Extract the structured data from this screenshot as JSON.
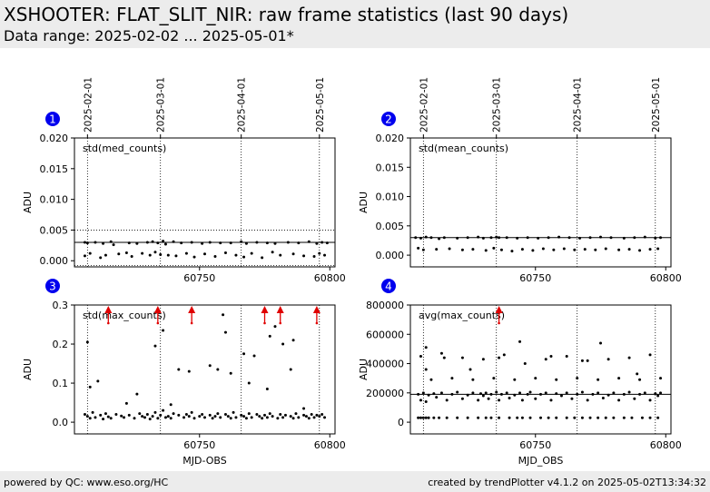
{
  "header": {
    "title": "XSHOOTER: FLAT_SLIT_NIR: raw frame statistics (last 90 days)",
    "subtitle": "Data range: 2025-02-02 ... 2025-05-01*"
  },
  "footer": {
    "left": "powered by QC: www.eso.org/HC",
    "right": "created by trendPlotter v4.1.2 on 2025-05-02T13:34:32"
  },
  "colors": {
    "points": "#000000",
    "outlier_arrow": "#e00000",
    "marker": "#0000ee",
    "header_bg": "#ececec"
  },
  "date_ticks": [
    {
      "label": "2025-02-01",
      "mjd": 60707
    },
    {
      "label": "2025-03-01",
      "mjd": 60735
    },
    {
      "label": "2025-04-01",
      "mjd": 60766
    },
    {
      "label": "2025-05-01",
      "mjd": 60796
    }
  ],
  "chart_data": [
    {
      "type": "scatter",
      "panel": "1",
      "label": "std(med_counts)",
      "ylabel": "ADU",
      "xlabel": "",
      "xlim": [
        60702,
        60802
      ],
      "ylim": [
        -0.001,
        0.02
      ],
      "x_ticks": [
        {
          "v": 60750,
          "label": "60750"
        },
        {
          "v": 60800,
          "label": "60800"
        }
      ],
      "y_ticks": [
        {
          "v": 0,
          "label": "0.000"
        },
        {
          "v": 0.005,
          "label": "0.005"
        },
        {
          "v": 0.01,
          "label": "0.010"
        },
        {
          "v": 0.015,
          "label": "0.015"
        },
        {
          "v": 0.02,
          "label": "0.020"
        }
      ],
      "reference_line": 0.003,
      "threshold_lines": [
        -0.0008,
        0.005
      ],
      "series": [
        {
          "x": [
            60706,
            60706,
            60707,
            60708,
            60710,
            60712,
            60713,
            60714,
            60716,
            60717,
            60719,
            60722,
            60723,
            60724,
            60726,
            60728,
            60730,
            60731,
            60732,
            60733,
            60734,
            60735,
            60736,
            60737,
            60738,
            60740,
            60741,
            60743,
            60745,
            60747,
            60748,
            60751,
            60752,
            60754,
            60756,
            60758,
            60760,
            60762,
            60764,
            60766,
            60767,
            60768,
            60770,
            60772,
            60774,
            60776,
            60778,
            60779,
            60781,
            60784,
            60786,
            60788,
            60790,
            60792,
            60794,
            60795,
            60796,
            60797,
            60798,
            60799
          ],
          "y": [
            0.003,
            0.0008,
            0.0029,
            0.0012,
            0.003,
            0.0005,
            0.0028,
            0.0009,
            0.0031,
            0.0026,
            0.0011,
            0.0013,
            0.0029,
            0.0007,
            0.0028,
            0.0012,
            0.003,
            0.0009,
            0.0031,
            0.0014,
            0.0029,
            0.001,
            0.0032,
            0.0027,
            0.0009,
            0.0031,
            0.0008,
            0.0029,
            0.0012,
            0.003,
            0.0006,
            0.0028,
            0.0011,
            0.003,
            0.0007,
            0.0029,
            0.0013,
            0.0029,
            0.0009,
            0.0031,
            0.0006,
            0.0028,
            0.0012,
            0.003,
            0.0005,
            0.0029,
            0.0014,
            0.0028,
            0.0009,
            0.003,
            0.0011,
            0.0029,
            0.0008,
            0.0031,
            0.0007,
            0.0028,
            0.0012,
            0.003,
            0.0009,
            0.0029
          ]
        }
      ],
      "outliers_above": []
    },
    {
      "type": "scatter",
      "panel": "2",
      "label": "std(mean_counts)",
      "ylabel": "ADU",
      "xlabel": "",
      "xlim": [
        60702,
        60802
      ],
      "ylim": [
        -0.002,
        0.02
      ],
      "x_ticks": [
        {
          "v": 60750,
          "label": "60750"
        },
        {
          "v": 60800,
          "label": "60800"
        }
      ],
      "y_ticks": [
        {
          "v": 0,
          "label": "0.000"
        },
        {
          "v": 0.005,
          "label": "0.005"
        },
        {
          "v": 0.01,
          "label": "0.010"
        },
        {
          "v": 0.015,
          "label": "0.015"
        },
        {
          "v": 0.02,
          "label": "0.020"
        }
      ],
      "reference_line": 0.003,
      "threshold_lines": [],
      "series": [
        {
          "x": [
            60704,
            60705,
            60706,
            60707,
            60708,
            60710,
            60712,
            60713,
            60715,
            60717,
            60720,
            60722,
            60724,
            60726,
            60728,
            60730,
            60731,
            60733,
            60734,
            60735,
            60736,
            60737,
            60739,
            60741,
            60743,
            60745,
            60747,
            60749,
            60751,
            60753,
            60755,
            60757,
            60759,
            60761,
            60763,
            60765,
            60767,
            60769,
            60771,
            60773,
            60775,
            60777,
            60779,
            60782,
            60784,
            60786,
            60788,
            60790,
            60792,
            60794,
            60796,
            60797,
            60798
          ],
          "y": [
            0.003,
            0.0012,
            0.0029,
            0.0009,
            0.0031,
            0.003,
            0.001,
            0.0028,
            0.003,
            0.0011,
            0.0029,
            0.0009,
            0.003,
            0.001,
            0.0031,
            0.0029,
            0.0008,
            0.003,
            0.0012,
            0.0031,
            0.003,
            0.0009,
            0.003,
            0.0007,
            0.0029,
            0.001,
            0.003,
            0.0008,
            0.0029,
            0.0011,
            0.003,
            0.0009,
            0.0031,
            0.0011,
            0.003,
            0.0009,
            0.0029,
            0.001,
            0.003,
            0.0009,
            0.0031,
            0.0011,
            0.003,
            0.0009,
            0.0029,
            0.001,
            0.003,
            0.0008,
            0.0031,
            0.001,
            0.0029,
            0.0011,
            0.003
          ]
        }
      ],
      "outliers_above": []
    },
    {
      "type": "scatter",
      "panel": "3",
      "label": "std(max_counts)",
      "ylabel": "ADU",
      "xlabel": "MJD-OBS",
      "xlim": [
        60702,
        60802
      ],
      "ylim": [
        -0.03,
        0.3
      ],
      "x_ticks": [
        {
          "v": 60750,
          "label": "60750"
        },
        {
          "v": 60800,
          "label": "60800"
        }
      ],
      "y_ticks": [
        {
          "v": 0,
          "label": "0.0"
        },
        {
          "v": 0.1,
          "label": "0.1"
        },
        {
          "v": 0.2,
          "label": "0.2"
        },
        {
          "v": 0.3,
          "label": "0.3"
        }
      ],
      "reference_line": null,
      "threshold_lines": [],
      "series": [
        {
          "x": [
            60706,
            60707,
            60708,
            60709,
            60710,
            60712,
            60713,
            60714,
            60715,
            60716,
            60718,
            60720,
            60721,
            60723,
            60725,
            60727,
            60728,
            60729,
            60730,
            60731,
            60732,
            60733,
            60734,
            60735,
            60736,
            60737,
            60738,
            60739,
            60740,
            60742,
            60744,
            60745,
            60746,
            60747,
            60748,
            60750,
            60751,
            60752,
            60754,
            60755,
            60756,
            60757,
            60758,
            60760,
            60761,
            60762,
            60763,
            60764,
            60766,
            60767,
            60768,
            60769,
            60770,
            60772,
            60773,
            60774,
            60775,
            60776,
            60777,
            60778,
            60780,
            60781,
            60782,
            60783,
            60785,
            60786,
            60787,
            60788,
            60790,
            60791,
            60792,
            60793,
            60794,
            60795,
            60796,
            60797,
            60798,
            60707,
            60708,
            60711,
            60722,
            60726,
            60733,
            60736,
            60739,
            60742,
            60746,
            60754,
            60757,
            60759,
            60760,
            60762,
            60767,
            60769,
            60771,
            60776,
            60777,
            60779,
            60782,
            60785,
            60786,
            60790
          ],
          "y": [
            0.02,
            0.015,
            0.01,
            0.025,
            0.012,
            0.018,
            0.008,
            0.022,
            0.014,
            0.01,
            0.02,
            0.016,
            0.012,
            0.018,
            0.01,
            0.022,
            0.015,
            0.012,
            0.02,
            0.008,
            0.015,
            0.025,
            0.01,
            0.018,
            0.03,
            0.012,
            0.015,
            0.01,
            0.022,
            0.018,
            0.012,
            0.02,
            0.015,
            0.025,
            0.01,
            0.015,
            0.02,
            0.012,
            0.018,
            0.01,
            0.015,
            0.022,
            0.012,
            0.02,
            0.015,
            0.01,
            0.025,
            0.012,
            0.018,
            0.015,
            0.01,
            0.022,
            0.012,
            0.02,
            0.015,
            0.01,
            0.018,
            0.012,
            0.022,
            0.015,
            0.01,
            0.02,
            0.012,
            0.018,
            0.015,
            0.01,
            0.022,
            0.012,
            0.018,
            0.015,
            0.01,
            0.02,
            0.012,
            0.018,
            0.015,
            0.02,
            0.012,
            0.205,
            0.09,
            0.105,
            0.048,
            0.072,
            0.195,
            0.235,
            0.045,
            0.135,
            0.13,
            0.145,
            0.135,
            0.275,
            0.23,
            0.125,
            0.175,
            0.1,
            0.17,
            0.085,
            0.22,
            0.245,
            0.2,
            0.135,
            0.21,
            0.035
          ]
        }
      ],
      "outliers_above": [
        60715,
        60734,
        60747,
        60775,
        60781,
        60795
      ]
    },
    {
      "type": "scatter",
      "panel": "4",
      "label": "avg(max_counts)",
      "ylabel": "ADU",
      "xlabel": "MJD_OBS",
      "xlim": [
        60702,
        60802
      ],
      "ylim": [
        -80000,
        800000
      ],
      "x_ticks": [
        {
          "v": 60750,
          "label": "60750"
        },
        {
          "v": 60800,
          "label": "60800"
        }
      ],
      "y_ticks": [
        {
          "v": 0,
          "label": "0"
        },
        {
          "v": 200000,
          "label": "200000"
        },
        {
          "v": 400000,
          "label": "400000"
        },
        {
          "v": 600000,
          "label": "600000"
        },
        {
          "v": 800000,
          "label": "800000"
        }
      ],
      "reference_line": 190000,
      "threshold_lines": [],
      "series": [
        {
          "x": [
            60705,
            60706,
            60707,
            60708,
            60709,
            60711,
            60712,
            60714,
            60716,
            60718,
            60720,
            60722,
            60724,
            60726,
            60728,
            60729,
            60730,
            60731,
            60732,
            60733,
            60735,
            60736,
            60737,
            60739,
            60740,
            60742,
            60744,
            60745,
            60747,
            60748,
            60750,
            60752,
            60754,
            60756,
            60758,
            60760,
            60762,
            60764,
            60766,
            60768,
            60770,
            60772,
            60774,
            60776,
            60778,
            60780,
            60782,
            60784,
            60786,
            60788,
            60790,
            60792,
            60794,
            60796,
            60797,
            60798,
            60705,
            60706,
            60707,
            60708,
            60709,
            60711,
            60713,
            60716,
            60720,
            60724,
            60728,
            60731,
            60733,
            60736,
            60740,
            60743,
            60745,
            60748,
            60752,
            60755,
            60758,
            60762,
            60765,
            60768,
            60771,
            60774,
            60777,
            60780,
            60784,
            60787,
            60791,
            60794,
            60797,
            60706,
            60708,
            60710,
            60714,
            60718,
            60722,
            60726,
            60730,
            60734,
            60738,
            60742,
            60746,
            60750,
            60754,
            60758,
            60762,
            60766,
            60770,
            60774,
            60778,
            60782,
            60786,
            60790,
            60794,
            60798,
            60708,
            60715,
            60725,
            60736,
            60744,
            60756,
            60768,
            60775,
            60789
          ],
          "y": [
            190000,
            150000,
            200000,
            140000,
            185000,
            195000,
            170000,
            200000,
            150000,
            190000,
            205000,
            160000,
            185000,
            200000,
            150000,
            195000,
            180000,
            200000,
            160000,
            190000,
            205000,
            150000,
            190000,
            200000,
            165000,
            185000,
            200000,
            150000,
            190000,
            205000,
            160000,
            190000,
            200000,
            150000,
            195000,
            180000,
            200000,
            160000,
            190000,
            205000,
            150000,
            190000,
            200000,
            165000,
            185000,
            200000,
            150000,
            190000,
            205000,
            160000,
            190000,
            200000,
            150000,
            195000,
            180000,
            200000,
            30000,
            30000,
            30000,
            30000,
            30000,
            30000,
            30000,
            30000,
            30000,
            30000,
            30000,
            30000,
            30000,
            30000,
            30000,
            30000,
            30000,
            30000,
            30000,
            30000,
            30000,
            30000,
            30000,
            30000,
            30000,
            30000,
            30000,
            30000,
            30000,
            30000,
            30000,
            30000,
            30000,
            450000,
            510000,
            290000,
            470000,
            300000,
            440000,
            290000,
            430000,
            300000,
            460000,
            290000,
            400000,
            300000,
            430000,
            290000,
            450000,
            300000,
            420000,
            290000,
            430000,
            300000,
            440000,
            290000,
            460000,
            300000,
            360000,
            440000,
            360000,
            440000,
            550000,
            450000,
            420000,
            540000,
            330000
          ]
        }
      ],
      "outliers_above": [
        60736
      ]
    }
  ]
}
